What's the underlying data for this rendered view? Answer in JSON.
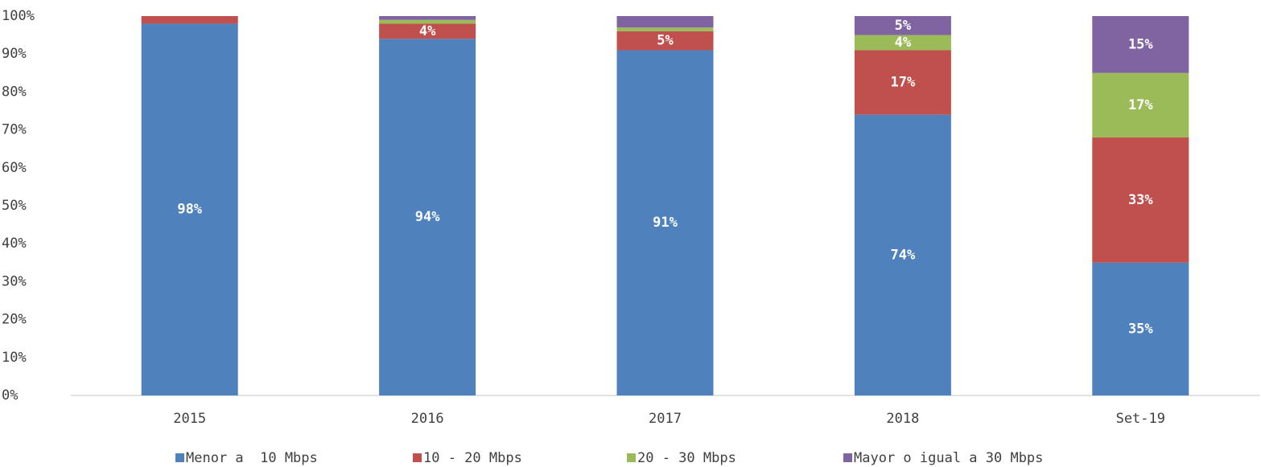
{
  "chart_data": {
    "type": "stacked_bar",
    "categories": [
      "2015",
      "2016",
      "2017",
      "2018",
      "Set-19"
    ],
    "series": [
      {
        "name": "Menor a  10 Mbps",
        "color": "#4f81bd",
        "values": [
          98,
          94,
          91,
          74,
          35
        ],
        "value_labels": [
          "98%",
          "94%",
          "91%",
          "74%",
          "35%"
        ]
      },
      {
        "name": "10 - 20 Mbps",
        "color": "#c0504d",
        "values": [
          2,
          4,
          5,
          17,
          33
        ],
        "value_labels": [
          null,
          "4%",
          "5%",
          "17%",
          "33%"
        ]
      },
      {
        "name": "20 - 30 Mbps",
        "color": "#9bbb59",
        "values": [
          0,
          1,
          1,
          4,
          17
        ],
        "value_labels": [
          null,
          null,
          null,
          "4%",
          "17%"
        ]
      },
      {
        "name": "Mayor o igual a 30 Mbps",
        "color": "#8064a2",
        "values": [
          0,
          1,
          3,
          5,
          15
        ],
        "value_labels": [
          null,
          null,
          null,
          "5%",
          "15%"
        ]
      }
    ],
    "ylim": [
      0,
      100
    ],
    "yticks": [
      {
        "value": 0,
        "label": "0%"
      },
      {
        "value": 10,
        "label": "10%"
      },
      {
        "value": 20,
        "label": "20%"
      },
      {
        "value": 30,
        "label": "30%"
      },
      {
        "value": 40,
        "label": "40%"
      },
      {
        "value": 50,
        "label": "50%"
      },
      {
        "value": 60,
        "label": "60%"
      },
      {
        "value": 70,
        "label": "70%"
      },
      {
        "value": 80,
        "label": "80%"
      },
      {
        "value": 90,
        "label": "90%"
      },
      {
        "value": 100,
        "label": "100%"
      }
    ],
    "legend": "bottom"
  }
}
